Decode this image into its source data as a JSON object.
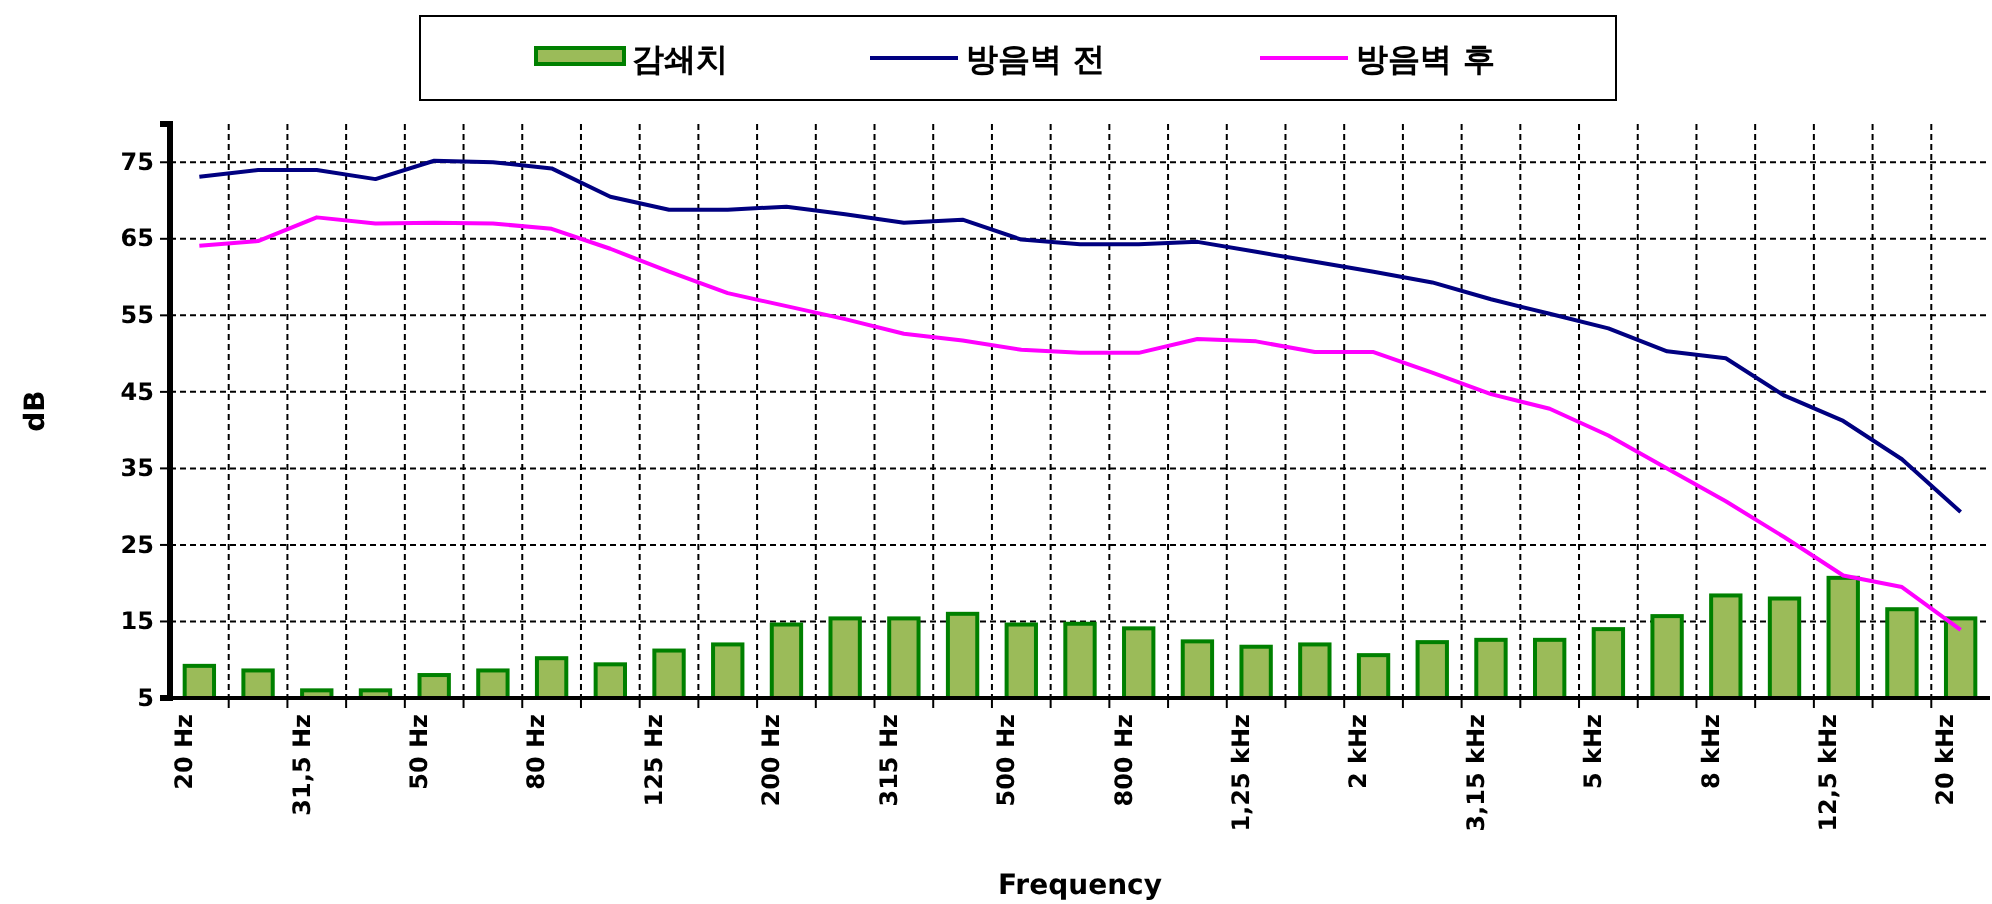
{
  "chart_data": {
    "type": "bar",
    "xlabel": "Frequency",
    "ylabel": "dB",
    "categories": [
      "20 Hz",
      null,
      "31,5 Hz",
      null,
      "50 Hz",
      null,
      "80 Hz",
      null,
      "125 Hz",
      null,
      "200 Hz",
      null,
      "315 Hz",
      null,
      "500 Hz",
      null,
      "800 Hz",
      null,
      "1,25 kHz",
      null,
      "2 kHz",
      null,
      "3,15 kHz",
      null,
      "5 kHz",
      null,
      "8 kHz",
      null,
      "12,5 kHz",
      null,
      "20 kHz"
    ],
    "series": [
      {
        "name": "감쇄치",
        "color": "#9bbb59",
        "values": [
          9.2,
          8.6,
          6,
          6,
          8,
          8.6,
          10.2,
          9.4,
          11.2,
          12,
          14.6,
          15.4,
          15.4,
          16,
          14.6,
          14.7,
          14.1,
          12.4,
          11.7,
          12,
          10.6,
          12.3,
          12.6,
          12.6,
          14,
          15.7,
          18.4,
          18,
          20.7,
          16.6,
          15.4
        ]
      },
      {
        "name": "방음벽 전",
        "type": "line",
        "color": "#000080",
        "values": [
          73.1,
          74,
          74,
          72.8,
          75.2,
          75,
          74.2,
          70.5,
          68.8,
          68.8,
          69.2,
          68.2,
          67.1,
          67.5,
          64.9,
          64.3,
          64.3,
          64.6,
          63.3,
          62,
          60.7,
          59.3,
          57.1,
          55.2,
          53.3,
          50.3,
          49.4,
          44.5,
          41.2,
          36.2,
          29.3
        ]
      },
      {
        "name": "방음벽 후",
        "type": "line",
        "color": "#ff00ff",
        "values": [
          64.1,
          64.7,
          67.8,
          67,
          67.1,
          67,
          66.3,
          63.7,
          60.7,
          57.9,
          56.2,
          54.5,
          52.6,
          51.7,
          50.5,
          50.1,
          50.1,
          51.9,
          51.6,
          50.2,
          50.2,
          47.5,
          44.7,
          42.8,
          39.3,
          35,
          30.7,
          26,
          21,
          19.5,
          13.9
        ]
      }
    ],
    "ylim": [
      5,
      80
    ],
    "yticks": [
      5,
      15,
      25,
      35,
      45,
      55,
      65,
      75
    ],
    "grid": true,
    "legend": "top",
    "marker": "none",
    "line_style": "solid"
  }
}
